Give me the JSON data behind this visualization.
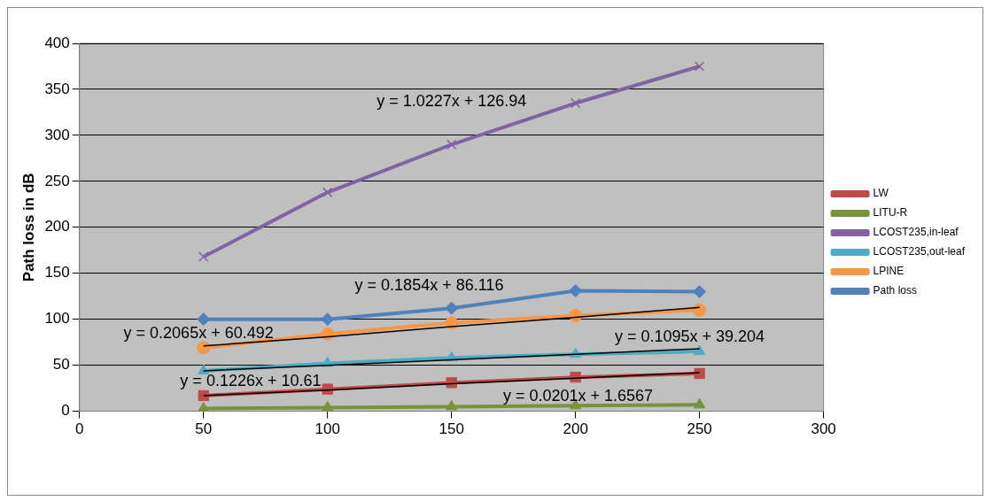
{
  "chart_data": {
    "type": "line",
    "ylabel": "Path loss in dB",
    "x": [
      50,
      100,
      150,
      200,
      250
    ],
    "xlim": [
      0,
      300
    ],
    "xticks": [
      0,
      50,
      100,
      150,
      200,
      250,
      300
    ],
    "ylim": [
      0,
      400
    ],
    "yticks": [
      0,
      50,
      100,
      150,
      200,
      250,
      300,
      350,
      400
    ],
    "grid": "y",
    "legend": "right",
    "line_style": "solid",
    "series": [
      {
        "name": "LW",
        "color": "#be4b48",
        "marker": "square",
        "values": [
          17,
          24,
          31,
          37,
          41
        ]
      },
      {
        "name": "LITU-R",
        "color": "#77933c",
        "marker": "triangle",
        "values": [
          3,
          4,
          5,
          6,
          7
        ]
      },
      {
        "name": "LCOST235,in-leaf",
        "color": "#8064a2",
        "marker": "cross",
        "values": [
          168,
          238,
          290,
          335,
          375
        ]
      },
      {
        "name": "LCOST235,out-leaf",
        "color": "#4bacc6",
        "marker": "triangle",
        "values": [
          44,
          52,
          58,
          62,
          65
        ]
      },
      {
        "name": "LPINE",
        "color": "#f79646",
        "marker": "circle",
        "values": [
          69,
          84,
          96,
          104,
          110
        ]
      },
      {
        "name": "Path loss",
        "color": "#4f81bd",
        "marker": "diamond",
        "values": [
          100,
          100,
          112,
          131,
          130
        ]
      },
      {
        "type": "line",
        "color": "#000000",
        "marker": "none",
        "values": [
          17,
          23,
          30,
          36,
          42
        ]
      },
      {
        "type": "line",
        "color": "#000000",
        "marker": "none",
        "values": [
          44,
          50,
          56,
          62,
          68
        ]
      },
      {
        "type": "line",
        "color": "#000000",
        "marker": "none",
        "values": [
          71,
          81,
          92,
          102,
          113
        ]
      }
    ],
    "annotations": [
      "y = 1.0227x + 126.94",
      "y = 0.1854x + 86.116",
      "y = 0.2065x + 60.492",
      "y = 0.1095x + 39.204",
      "y = 0.1226x + 10.61",
      "y = 0.0201x + 1.6567"
    ]
  }
}
